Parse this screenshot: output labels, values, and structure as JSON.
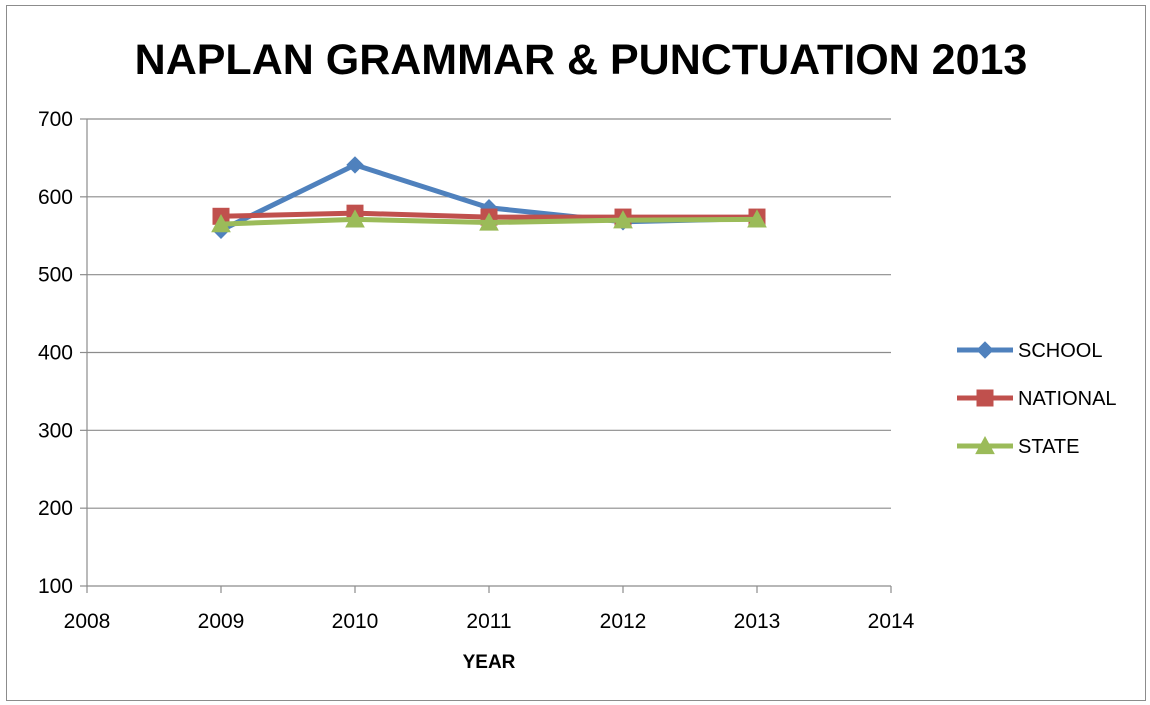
{
  "chart_data": {
    "type": "line",
    "title": "NAPLAN GRAMMAR & PUNCTUATION 2013",
    "xlabel": "YEAR",
    "ylabel": "",
    "xlim": [
      2008,
      2014
    ],
    "ylim": [
      100,
      700
    ],
    "xticks": [
      "2008",
      "2009",
      "2010",
      "2011",
      "2012",
      "2013",
      "2014"
    ],
    "yticks": [
      "100",
      "200",
      "300",
      "400",
      "500",
      "600",
      "700"
    ],
    "x": [
      2009,
      2010,
      2011,
      2012,
      2013
    ],
    "grid": "horizontal",
    "legend_position": "right",
    "series": [
      {
        "name": "SCHOOL",
        "values": [
          557,
          641,
          586,
          568,
          572
        ],
        "color": "#4F81BD",
        "marker": "diamond"
      },
      {
        "name": "NATIONAL",
        "values": [
          575,
          579,
          574,
          574,
          574
        ],
        "color": "#C0504D",
        "marker": "square"
      },
      {
        "name": "STATE",
        "values": [
          565,
          571,
          567,
          570,
          571
        ],
        "color": "#9BBB59",
        "marker": "triangle"
      }
    ]
  }
}
